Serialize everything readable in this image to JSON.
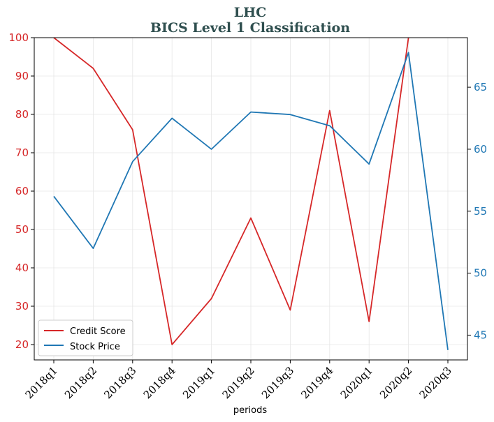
{
  "chart_data": {
    "type": "line",
    "title": "LHC",
    "subtitle": "BICS Level 1 Classification",
    "xlabel": "periods",
    "categories": [
      "2018q1",
      "2018q2",
      "2018q3",
      "2018q4",
      "2019q1",
      "2019q2",
      "2019q3",
      "2019q4",
      "2020q1",
      "2020q2",
      "2020q3"
    ],
    "series": [
      {
        "name": "Credit Score",
        "axis": "left",
        "color": "#d62728",
        "values": [
          100,
          92,
          76,
          20,
          32,
          53,
          29,
          81,
          26,
          100,
          null
        ]
      },
      {
        "name": "Stock Price",
        "axis": "right",
        "color": "#1f77b4",
        "values": [
          56.2,
          52.0,
          59.0,
          62.5,
          60.0,
          63.0,
          62.8,
          61.9,
          58.8,
          67.8,
          43.8
        ]
      }
    ],
    "left_axis": {
      "ylim": [
        16,
        100
      ],
      "ticks": [
        20,
        30,
        40,
        50,
        60,
        70,
        80,
        90,
        100
      ],
      "color": "#d62728"
    },
    "right_axis": {
      "ylim": [
        43.0,
        69.0
      ],
      "ticks": [
        45,
        50,
        55,
        60,
        65
      ],
      "color": "#1f77b4"
    },
    "grid": true,
    "legend_position": "bottom-left"
  }
}
